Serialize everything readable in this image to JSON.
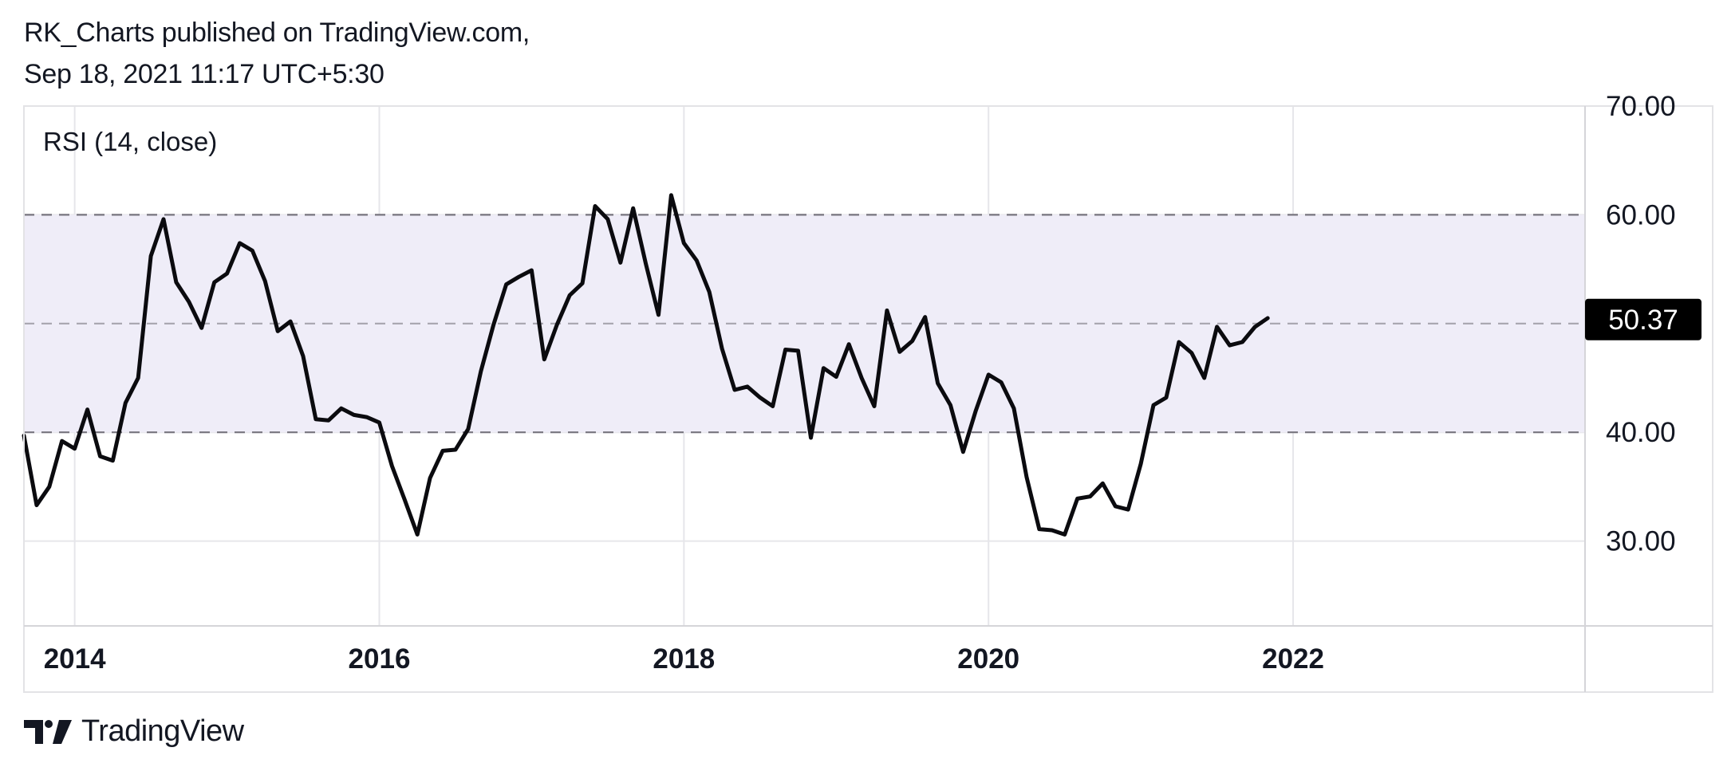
{
  "header": {
    "publisher_line": "RK_Charts published on TradingView.com,",
    "date_line": "Sep 18, 2021 11:17 UTC+5:30"
  },
  "footer": {
    "brand": "TradingView",
    "logo_icon": "tradingview-logo-icon"
  },
  "colors": {
    "line": "#0b0b0f",
    "band_fill": "#efedf8",
    "grid": "#e6e6ea",
    "dash": "#77757e",
    "midline": "#a7a5ae",
    "badge_bg": "#000000",
    "badge_text": "#ffffff"
  },
  "chart_data": {
    "type": "line",
    "title": "RSI (14, close)",
    "x_tick_labels": [
      "2014",
      "2016",
      "2018",
      "2020",
      "2022"
    ],
    "y_tick_labels": [
      "70.00",
      "60.00",
      "40.00",
      "30.00"
    ],
    "ylim": [
      22.2,
      70.0
    ],
    "xlim": [
      "2013-09",
      "2023-12"
    ],
    "bands": {
      "upper": 60,
      "middle": 50,
      "lower": 40
    },
    "last_value_label": "50.37",
    "grid": true,
    "series": [
      {
        "values": [
          {
            "x": "2013-09",
            "y": 39.7
          },
          {
            "x": "2013-10",
            "y": 33.3
          },
          {
            "x": "2013-11",
            "y": 35.0
          },
          {
            "x": "2013-12",
            "y": 39.2
          },
          {
            "x": "2014-01",
            "y": 38.5
          },
          {
            "x": "2014-02",
            "y": 42.1
          },
          {
            "x": "2014-03",
            "y": 37.8
          },
          {
            "x": "2014-04",
            "y": 37.4
          },
          {
            "x": "2014-05",
            "y": 42.7
          },
          {
            "x": "2014-06",
            "y": 45.0
          },
          {
            "x": "2014-07",
            "y": 56.2
          },
          {
            "x": "2014-08",
            "y": 59.6
          },
          {
            "x": "2014-09",
            "y": 53.8
          },
          {
            "x": "2014-10",
            "y": 52.0
          },
          {
            "x": "2014-11",
            "y": 49.6
          },
          {
            "x": "2014-12",
            "y": 53.8
          },
          {
            "x": "2015-01",
            "y": 54.6
          },
          {
            "x": "2015-02",
            "y": 57.4
          },
          {
            "x": "2015-03",
            "y": 56.7
          },
          {
            "x": "2015-04",
            "y": 53.9
          },
          {
            "x": "2015-05",
            "y": 49.3
          },
          {
            "x": "2015-06",
            "y": 50.2
          },
          {
            "x": "2015-07",
            "y": 47.0
          },
          {
            "x": "2015-08",
            "y": 41.2
          },
          {
            "x": "2015-09",
            "y": 41.1
          },
          {
            "x": "2015-10",
            "y": 42.2
          },
          {
            "x": "2015-11",
            "y": 41.6
          },
          {
            "x": "2015-12",
            "y": 41.4
          },
          {
            "x": "2016-01",
            "y": 40.9
          },
          {
            "x": "2016-02",
            "y": 36.9
          },
          {
            "x": "2016-03",
            "y": 33.8
          },
          {
            "x": "2016-04",
            "y": 30.6
          },
          {
            "x": "2016-05",
            "y": 35.8
          },
          {
            "x": "2016-06",
            "y": 38.3
          },
          {
            "x": "2016-07",
            "y": 38.4
          },
          {
            "x": "2016-08",
            "y": 40.3
          },
          {
            "x": "2016-09",
            "y": 45.6
          },
          {
            "x": "2016-10",
            "y": 49.9
          },
          {
            "x": "2016-11",
            "y": 53.6
          },
          {
            "x": "2016-12",
            "y": 54.3
          },
          {
            "x": "2017-01",
            "y": 54.9
          },
          {
            "x": "2017-02",
            "y": 46.7
          },
          {
            "x": "2017-03",
            "y": 49.9
          },
          {
            "x": "2017-04",
            "y": 52.6
          },
          {
            "x": "2017-05",
            "y": 53.7
          },
          {
            "x": "2017-06",
            "y": 60.8
          },
          {
            "x": "2017-07",
            "y": 59.6
          },
          {
            "x": "2017-08",
            "y": 55.6
          },
          {
            "x": "2017-09",
            "y": 60.6
          },
          {
            "x": "2017-10",
            "y": 55.5
          },
          {
            "x": "2017-11",
            "y": 50.8
          },
          {
            "x": "2017-12",
            "y": 61.8
          },
          {
            "x": "2018-01",
            "y": 57.4
          },
          {
            "x": "2018-02",
            "y": 55.8
          },
          {
            "x": "2018-03",
            "y": 52.9
          },
          {
            "x": "2018-04",
            "y": 47.7
          },
          {
            "x": "2018-05",
            "y": 43.9
          },
          {
            "x": "2018-06",
            "y": 44.2
          },
          {
            "x": "2018-07",
            "y": 43.2
          },
          {
            "x": "2018-08",
            "y": 42.4
          },
          {
            "x": "2018-09",
            "y": 47.6
          },
          {
            "x": "2018-10",
            "y": 47.5
          },
          {
            "x": "2018-11",
            "y": 39.5
          },
          {
            "x": "2018-12",
            "y": 45.9
          },
          {
            "x": "2019-01",
            "y": 45.1
          },
          {
            "x": "2019-02",
            "y": 48.1
          },
          {
            "x": "2019-03",
            "y": 45.0
          },
          {
            "x": "2019-04",
            "y": 42.4
          },
          {
            "x": "2019-05",
            "y": 51.2
          },
          {
            "x": "2019-06",
            "y": 47.4
          },
          {
            "x": "2019-07",
            "y": 48.4
          },
          {
            "x": "2019-08",
            "y": 50.6
          },
          {
            "x": "2019-09",
            "y": 44.5
          },
          {
            "x": "2019-10",
            "y": 42.5
          },
          {
            "x": "2019-11",
            "y": 38.2
          },
          {
            "x": "2019-12",
            "y": 42.0
          },
          {
            "x": "2020-01",
            "y": 45.3
          },
          {
            "x": "2020-02",
            "y": 44.6
          },
          {
            "x": "2020-03",
            "y": 42.2
          },
          {
            "x": "2020-04",
            "y": 35.9
          },
          {
            "x": "2020-05",
            "y": 31.1
          },
          {
            "x": "2020-06",
            "y": 31.0
          },
          {
            "x": "2020-07",
            "y": 30.6
          },
          {
            "x": "2020-08",
            "y": 33.9
          },
          {
            "x": "2020-09",
            "y": 34.1
          },
          {
            "x": "2020-10",
            "y": 35.3
          },
          {
            "x": "2020-11",
            "y": 33.2
          },
          {
            "x": "2020-12",
            "y": 32.9
          },
          {
            "x": "2021-01",
            "y": 37.1
          },
          {
            "x": "2021-02",
            "y": 42.5
          },
          {
            "x": "2021-03",
            "y": 43.2
          },
          {
            "x": "2021-04",
            "y": 48.3
          },
          {
            "x": "2021-05",
            "y": 47.3
          },
          {
            "x": "2021-06",
            "y": 45.0
          },
          {
            "x": "2021-07",
            "y": 49.7
          },
          {
            "x": "2021-08",
            "y": 48.0
          },
          {
            "x": "2021-09",
            "y": 48.3
          },
          {
            "x": "2021-10",
            "y": 49.7
          },
          {
            "x": "2021-11",
            "y": 50.5
          }
        ]
      }
    ]
  }
}
